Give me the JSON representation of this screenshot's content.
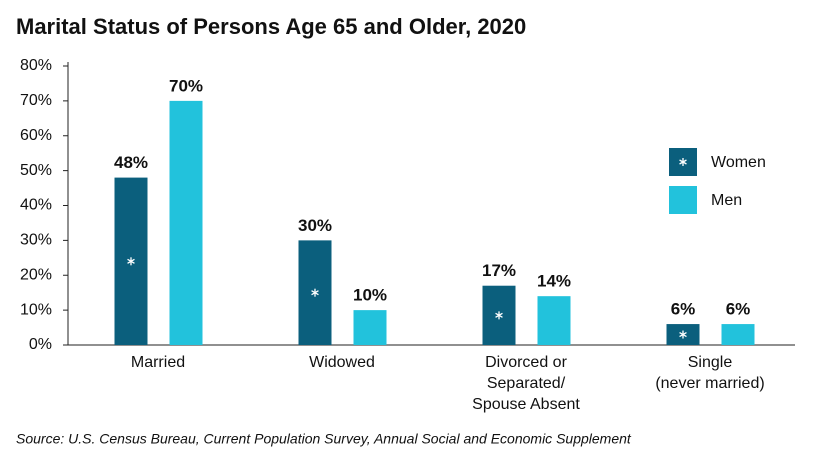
{
  "chart_data": {
    "type": "bar",
    "title": "Marital Status of Persons Age 65 and Older, 2020",
    "categories": [
      "Married",
      "Widowed",
      "Divorced or\nSeparated/\nSpouse Absent",
      "Single\n(never married)"
    ],
    "series": [
      {
        "name": "Women",
        "color": "#0b5f7d",
        "values": [
          48,
          30,
          17,
          6
        ],
        "value_labels": [
          "48%",
          "30%",
          "17%",
          "6%"
        ]
      },
      {
        "name": "Men",
        "color": "#22c2dc",
        "values": [
          70,
          10,
          14,
          6
        ],
        "value_labels": [
          "70%",
          "10%",
          "14%",
          "6%"
        ]
      }
    ],
    "ylim": [
      0,
      80
    ],
    "yticks": [
      {
        "value": 0,
        "label": "0%"
      },
      {
        "value": 10,
        "label": "10%"
      },
      {
        "value": 20,
        "label": "20%"
      },
      {
        "value": 30,
        "label": "30%"
      },
      {
        "value": 40,
        "label": "40%"
      },
      {
        "value": 50,
        "label": "50%"
      },
      {
        "value": 60,
        "label": "60%"
      },
      {
        "value": 70,
        "label": "70%"
      },
      {
        "value": 80,
        "label": "80%"
      }
    ],
    "grid": false,
    "legend": "right",
    "source": "Source: U.S. Census Bureau, Current Population Survey, Annual Social and Economic Supplement"
  }
}
